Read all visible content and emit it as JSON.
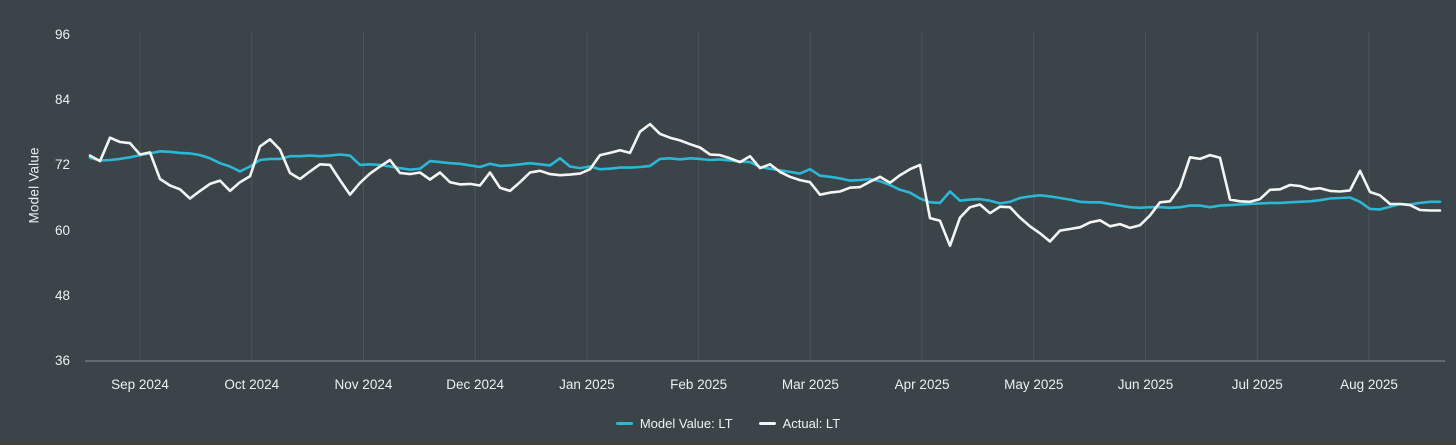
{
  "chart_data": {
    "type": "line",
    "title": "",
    "xlabel": "",
    "ylabel": "Model Value",
    "ylim": [
      36,
      96
    ],
    "y_ticks": [
      96,
      84,
      72,
      60,
      48,
      36
    ],
    "x_ticks": [
      "Sep 2024",
      "Oct 2024",
      "Nov 2024",
      "Dec 2024",
      "Jan 2025",
      "Feb 2025",
      "Mar 2025",
      "Apr 2025",
      "May 2025",
      "Jun 2025",
      "Jul 2025",
      "Aug 2025"
    ],
    "grid": "vertical-month-gridlines-only",
    "legend_position": "bottom-center",
    "series": [
      {
        "name": "Model Value: LT",
        "color": "#2cb7d6",
        "values": [
          73.4,
          72.9,
          73.0,
          73.2,
          73.5,
          73.9,
          74.2,
          74.6,
          74.5,
          74.3,
          74.2,
          73.9,
          73.3,
          72.4,
          71.8,
          70.9,
          71.8,
          73.0,
          73.2,
          73.2,
          73.7,
          73.7,
          73.8,
          73.7,
          73.8,
          74.0,
          73.8,
          72.1,
          72.2,
          72.1,
          71.8,
          71.5,
          71.2,
          71.4,
          72.8,
          72.6,
          72.4,
          72.3,
          72.0,
          71.7,
          72.3,
          71.9,
          72.0,
          72.2,
          72.4,
          72.2,
          72.0,
          73.3,
          71.8,
          71.5,
          71.8,
          71.3,
          71.4,
          71.6,
          71.6,
          71.7,
          71.9,
          73.2,
          73.3,
          73.1,
          73.3,
          73.2,
          73.0,
          73.1,
          72.9,
          72.7,
          72.6,
          71.7,
          71.4,
          71.1,
          70.8,
          70.5,
          71.3,
          70.1,
          69.9,
          69.6,
          69.2,
          69.3,
          69.5,
          69.1,
          68.4,
          67.5,
          67.0,
          65.9,
          65.2,
          65.1,
          67.2,
          65.5,
          65.7,
          65.8,
          65.5,
          65.0,
          65.3,
          66.0,
          66.3,
          66.5,
          66.3,
          66.0,
          65.7,
          65.3,
          65.2,
          65.2,
          64.9,
          64.6,
          64.3,
          64.2,
          64.3,
          64.3,
          64.2,
          64.3,
          64.6,
          64.6,
          64.3,
          64.6,
          64.7,
          64.8,
          64.9,
          65.0,
          65.1,
          65.1,
          65.2,
          65.3,
          65.4,
          65.6,
          65.9,
          66.0,
          66.1,
          65.3,
          64.0,
          63.9,
          64.4,
          64.9,
          64.8,
          65.1,
          65.3,
          65.3
        ]
      },
      {
        "name": "Actual: LT",
        "color": "#f4f6f6",
        "values": [
          73.8,
          72.8,
          77.1,
          76.3,
          76.1,
          74.0,
          74.4,
          69.5,
          68.3,
          67.6,
          65.9,
          67.3,
          68.6,
          69.2,
          67.3,
          68.9,
          70.0,
          75.5,
          76.8,
          74.9,
          70.6,
          69.5,
          70.9,
          72.2,
          72.1,
          69.3,
          66.6,
          68.8,
          70.5,
          71.8,
          73.0,
          70.6,
          70.4,
          70.7,
          69.4,
          70.7,
          68.9,
          68.5,
          68.6,
          68.3,
          70.7,
          67.9,
          67.3,
          68.9,
          70.7,
          71.0,
          70.4,
          70.2,
          70.3,
          70.5,
          71.3,
          73.9,
          74.3,
          74.8,
          74.3,
          78.2,
          79.6,
          77.8,
          77.1,
          76.6,
          75.9,
          75.3,
          74.0,
          73.9,
          73.3,
          72.6,
          73.7,
          71.5,
          72.2,
          70.8,
          69.9,
          69.3,
          68.9,
          66.6,
          67.0,
          67.2,
          67.9,
          68.0,
          69.0,
          69.9,
          68.8,
          70.2,
          71.3,
          72.1,
          62.3,
          61.8,
          57.2,
          62.4,
          64.3,
          64.8,
          63.2,
          64.4,
          64.3,
          62.4,
          60.8,
          59.5,
          58.0,
          60.0,
          60.3,
          60.6,
          61.5,
          61.9,
          60.8,
          61.2,
          60.5,
          61.0,
          62.8,
          65.2,
          65.4,
          68.0,
          73.5,
          73.2,
          73.9,
          73.4,
          65.7,
          65.4,
          65.3,
          65.8,
          67.5,
          67.6,
          68.4,
          68.2,
          67.6,
          67.8,
          67.3,
          67.2,
          67.4,
          71.0,
          67.1,
          66.5,
          64.9,
          64.9,
          64.7,
          63.8,
          63.7,
          63.7
        ]
      }
    ]
  },
  "colors": {
    "background": "#3b4448",
    "gridline": "#4d5559",
    "axis_line": "#6e777b",
    "text": "#edf0f0"
  }
}
